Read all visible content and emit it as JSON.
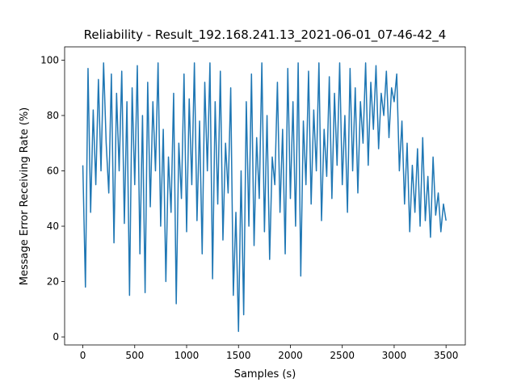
{
  "chart_data": {
    "type": "line",
    "title": "Reliability - Result_192.168.241.13_2021-06-01_07-46-42_4",
    "xlabel": "Samples (s)",
    "ylabel": "Message Error Receiving Rate (%)",
    "x": [
      0,
      25,
      50,
      75,
      100,
      125,
      150,
      175,
      200,
      225,
      250,
      275,
      300,
      325,
      350,
      375,
      400,
      425,
      450,
      475,
      500,
      525,
      550,
      575,
      600,
      625,
      650,
      675,
      700,
      725,
      750,
      775,
      800,
      825,
      850,
      875,
      900,
      925,
      950,
      975,
      1000,
      1025,
      1050,
      1075,
      1100,
      1125,
      1150,
      1175,
      1200,
      1225,
      1250,
      1275,
      1300,
      1325,
      1350,
      1375,
      1400,
      1425,
      1450,
      1475,
      1500,
      1525,
      1550,
      1575,
      1600,
      1625,
      1650,
      1675,
      1700,
      1725,
      1750,
      1775,
      1800,
      1825,
      1850,
      1875,
      1900,
      1925,
      1950,
      1975,
      2000,
      2025,
      2050,
      2075,
      2100,
      2125,
      2150,
      2175,
      2200,
      2225,
      2250,
      2275,
      2300,
      2325,
      2350,
      2375,
      2400,
      2425,
      2450,
      2475,
      2500,
      2525,
      2550,
      2575,
      2600,
      2625,
      2650,
      2675,
      2700,
      2725,
      2750,
      2775,
      2800,
      2825,
      2850,
      2875,
      2900,
      2925,
      2950,
      2975,
      3000,
      3025,
      3050,
      3075,
      3100,
      3125,
      3150,
      3175,
      3200,
      3225,
      3250,
      3275,
      3300,
      3325,
      3350,
      3375,
      3400,
      3425,
      3450,
      3475,
      3500
    ],
    "series": [
      {
        "color": "#1f77b4",
        "values": [
          62,
          18,
          97,
          45,
          82,
          55,
          93,
          60,
          99,
          70,
          52,
          95,
          34,
          88,
          60,
          96,
          41,
          85,
          15,
          90,
          55,
          98,
          30,
          80,
          16,
          92,
          47,
          85,
          60,
          99,
          40,
          75,
          20,
          65,
          45,
          88,
          12,
          70,
          50,
          95,
          38,
          86,
          55,
          99,
          42,
          78,
          30,
          92,
          60,
          99,
          21,
          85,
          48,
          96,
          35,
          70,
          52,
          90,
          15,
          45,
          2,
          60,
          8,
          85,
          40,
          95,
          33,
          72,
          50,
          99,
          38,
          80,
          28,
          65,
          55,
          92,
          45,
          75,
          30,
          97,
          50,
          85,
          40,
          99,
          22,
          78,
          55,
          96,
          48,
          82,
          60,
          99,
          42,
          75,
          58,
          94,
          50,
          88,
          62,
          99,
          55,
          80,
          45,
          97,
          60,
          90,
          52,
          85,
          70,
          99,
          62,
          92,
          75,
          98,
          68,
          88,
          80,
          96,
          72,
          90,
          85,
          95,
          60,
          78,
          48,
          70,
          38,
          62,
          45,
          68,
          40,
          72,
          42,
          58,
          36,
          65,
          44,
          52,
          38,
          48,
          42
        ]
      }
    ],
    "xlim": [
      -175.5,
      3685.5
    ],
    "ylim": [
      -2.9,
      104.8
    ],
    "xticks": [
      0,
      500,
      1000,
      1500,
      2000,
      2500,
      3000,
      3500
    ],
    "yticks": [
      0,
      20,
      40,
      60,
      80,
      100
    ]
  }
}
